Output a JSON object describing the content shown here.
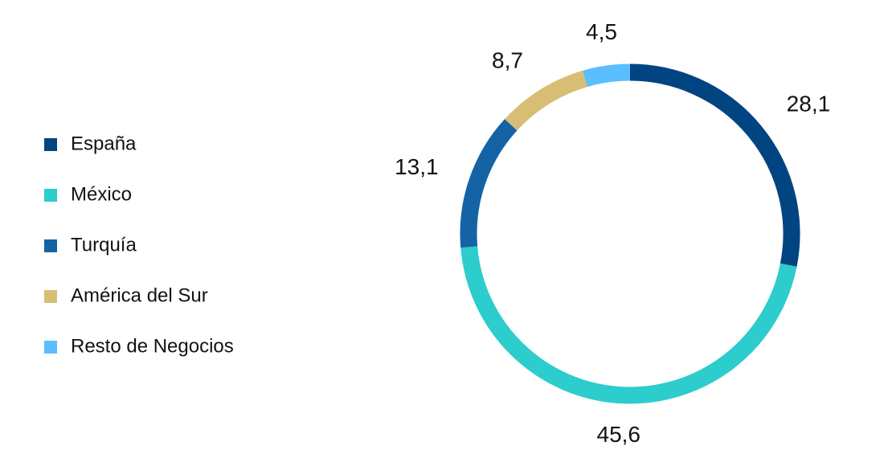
{
  "chart_data": {
    "type": "donut",
    "categories": [
      "España",
      "México",
      "Turquía",
      "América del Sur",
      "Resto de Negocios"
    ],
    "values": [
      28.1,
      45.6,
      13.1,
      8.7,
      4.5
    ],
    "value_labels": [
      "28,1",
      "45,6",
      "13,1",
      "8,7",
      "4,5"
    ],
    "colors": [
      "#004481",
      "#2dcccd",
      "#1464a5",
      "#d8be75",
      "#5bbeff"
    ],
    "legend": "left"
  }
}
